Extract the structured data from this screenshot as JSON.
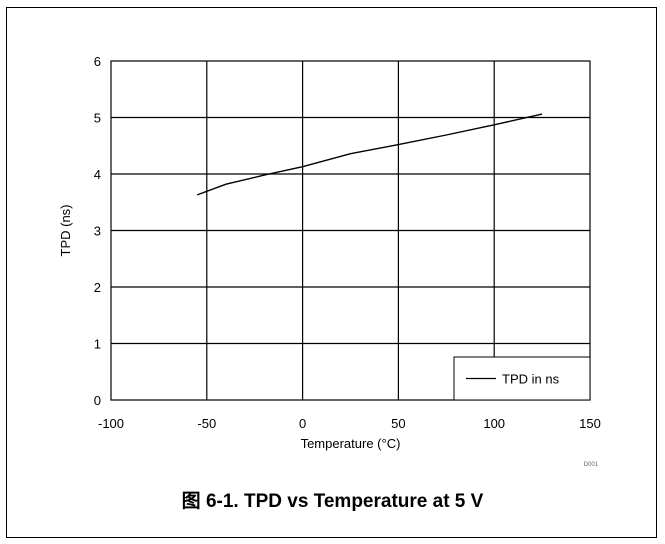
{
  "caption": "图 6-1. TPD vs Temperature at 5 V",
  "chart_data": {
    "type": "line",
    "xlabel": "Temperature (°C)",
    "ylabel": "TPD (ns)",
    "xlim": [
      -100,
      150
    ],
    "ylim": [
      0,
      6
    ],
    "xticks": [
      -100,
      -50,
      0,
      50,
      100,
      150
    ],
    "yticks": [
      0,
      1,
      2,
      3,
      4,
      5,
      6
    ],
    "grid": true,
    "legend_position": "bottom-right",
    "series": [
      {
        "name": "TPD in ns",
        "color": "#000000",
        "x": [
          -55,
          -40,
          -20,
          0,
          25,
          50,
          75,
          100,
          125
        ],
        "y": [
          3.63,
          3.82,
          3.98,
          4.13,
          4.36,
          4.52,
          4.69,
          4.87,
          5.06
        ]
      }
    ],
    "code_label": "D001"
  }
}
